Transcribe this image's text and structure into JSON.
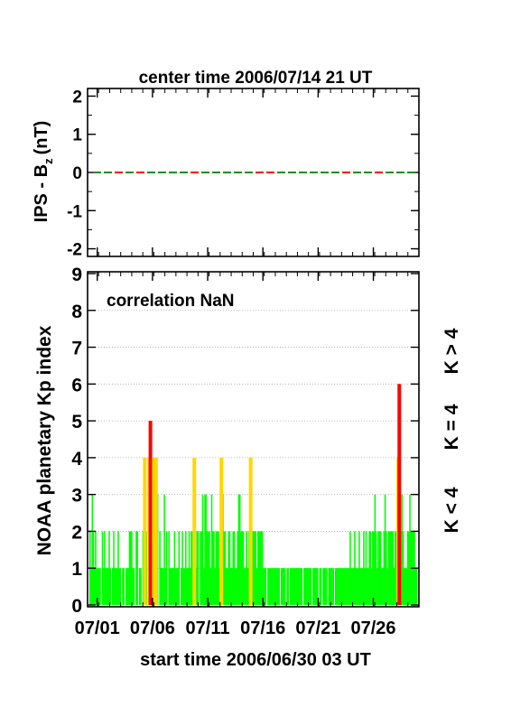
{
  "colors": {
    "k_low": "#00ff00",
    "k_mid": "#ffd700",
    "k_high": "#ff0000",
    "dash_a": "#228b22",
    "dash_b": "#ff0000"
  },
  "chart_data": [
    {
      "type": "line",
      "title": "center time 2006/07/14 21 UT",
      "ylabel": "IPS - B",
      "ylabel_sub": "z",
      "ylabel_unit": "(nT)",
      "ylim": [
        -2.2,
        2.2
      ],
      "yticks": [
        "2",
        "1",
        "0",
        "-1",
        "-2"
      ],
      "ytick_values": [
        2,
        1,
        0,
        -1,
        -2
      ],
      "series": [
        {
          "values": [
            0,
            0
          ]
        }
      ]
    },
    {
      "type": "bar",
      "annotation": "correlation NaN",
      "ylabel": "NOAA planetary Kp index",
      "xlabel": "start time 2006/06/30 03 UT",
      "ylim": [
        0,
        9
      ],
      "yticks": [
        "0",
        "1",
        "2",
        "3",
        "4",
        "5",
        "6",
        "7",
        "8",
        "9"
      ],
      "xticks": [
        "07/01",
        "07/06",
        "07/11",
        "07/16",
        "07/21",
        "07/26"
      ],
      "xtick_days": [
        0.875,
        5.875,
        10.875,
        15.875,
        20.875,
        25.875
      ],
      "xlim_days": [
        0,
        30
      ],
      "grid": true,
      "legend": [
        "K < 4",
        "K = 4",
        "K > 4"
      ],
      "kp_values": [
        2,
        1,
        3,
        2,
        1,
        2,
        1,
        1,
        1,
        1,
        0,
        2,
        1,
        2,
        1,
        1,
        1,
        2,
        1,
        0,
        1,
        2,
        1,
        1,
        1,
        2,
        1,
        1,
        0,
        1,
        1,
        0,
        1,
        1,
        1,
        2,
        2,
        2,
        1,
        1,
        0,
        2,
        2,
        0,
        1,
        1,
        0,
        2,
        4,
        3,
        2,
        0,
        4,
        5,
        1,
        2,
        4,
        2,
        4,
        1,
        3,
        0,
        2,
        1,
        1,
        1,
        3,
        1,
        2,
        0,
        2,
        1,
        1,
        1,
        1,
        2,
        1,
        1,
        1,
        2,
        0,
        1,
        2,
        1,
        1,
        2,
        1,
        1,
        2,
        1,
        2,
        2,
        4,
        1,
        1,
        2,
        2,
        0,
        2,
        2,
        3,
        1,
        3,
        3,
        2,
        2,
        2,
        1,
        3,
        2,
        2,
        1,
        2,
        2,
        2,
        1,
        4,
        2,
        3,
        2,
        2,
        1,
        1,
        2,
        2,
        1,
        1,
        2,
        2,
        1,
        1,
        2,
        3,
        3,
        2,
        2,
        2,
        1,
        1,
        2,
        1,
        2,
        4,
        3,
        2,
        2,
        2,
        2,
        1,
        2,
        2,
        2,
        2,
        2,
        1,
        1,
        1,
        0,
        1,
        1,
        1,
        1,
        1,
        1,
        1,
        1,
        1,
        1,
        1,
        0,
        1,
        1,
        1,
        1,
        0,
        1,
        1,
        0,
        1,
        1,
        1,
        1,
        1,
        1,
        1,
        1,
        1,
        1,
        1,
        0,
        1,
        1,
        1,
        1,
        1,
        1,
        1,
        0,
        1,
        1,
        1,
        1,
        1,
        0,
        1,
        1,
        0,
        1,
        1,
        1,
        1,
        0,
        1,
        1,
        1,
        1,
        1,
        0,
        1,
        1,
        1,
        1,
        1,
        1,
        1,
        1,
        1,
        1,
        1,
        1,
        1,
        2,
        1,
        1,
        1,
        2,
        1,
        1,
        1,
        2,
        1,
        1,
        1,
        2,
        1,
        2,
        1,
        1,
        2,
        2,
        1,
        2,
        2,
        3,
        2,
        1,
        2,
        2,
        2,
        1,
        1,
        2,
        3,
        2,
        1,
        2,
        2,
        2,
        2,
        2,
        1,
        2,
        2,
        4,
        6,
        3,
        2,
        3,
        2,
        1,
        1,
        1,
        2,
        2,
        3,
        2,
        2,
        2,
        2,
        1,
        1
      ]
    }
  ]
}
